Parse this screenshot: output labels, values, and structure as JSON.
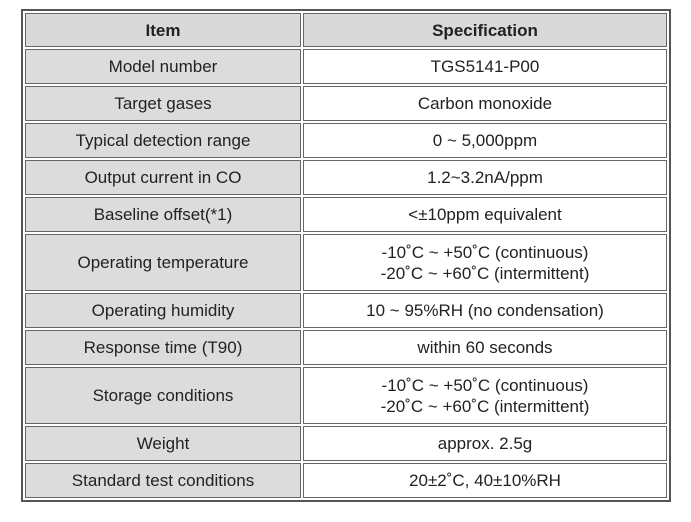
{
  "table": {
    "header": [
      "Item",
      "Specification"
    ],
    "rows": [
      {
        "item": "Model number",
        "spec": [
          "TGS5141-P00"
        ]
      },
      {
        "item": "Target gases",
        "spec": [
          "Carbon monoxide"
        ]
      },
      {
        "item": "Typical detection range",
        "spec": [
          "0 ~ 5,000ppm"
        ]
      },
      {
        "item": "Output current in CO",
        "spec": [
          "1.2~3.2nA/ppm"
        ]
      },
      {
        "item": "Baseline offset(*1)",
        "spec": [
          "<±10ppm equivalent"
        ]
      },
      {
        "item": "Operating temperature",
        "spec": [
          "-10˚C ~ +50˚C (continuous)",
          "-20˚C ~ +60˚C (intermittent)"
        ]
      },
      {
        "item": "Operating humidity",
        "spec": [
          "10 ~ 95%RH (no condensation)"
        ]
      },
      {
        "item": "Response time (T90)",
        "spec": [
          "within 60 seconds"
        ]
      },
      {
        "item": "Storage conditions",
        "spec": [
          "-10˚C ~ +50˚C (continuous)",
          "-20˚C ~ +60˚C (intermittent)"
        ]
      },
      {
        "item": "Weight",
        "spec": [
          "approx. 2.5g"
        ]
      },
      {
        "item": "Standard test conditions",
        "spec": [
          "20±2˚C, 40±10%RH"
        ]
      }
    ]
  }
}
